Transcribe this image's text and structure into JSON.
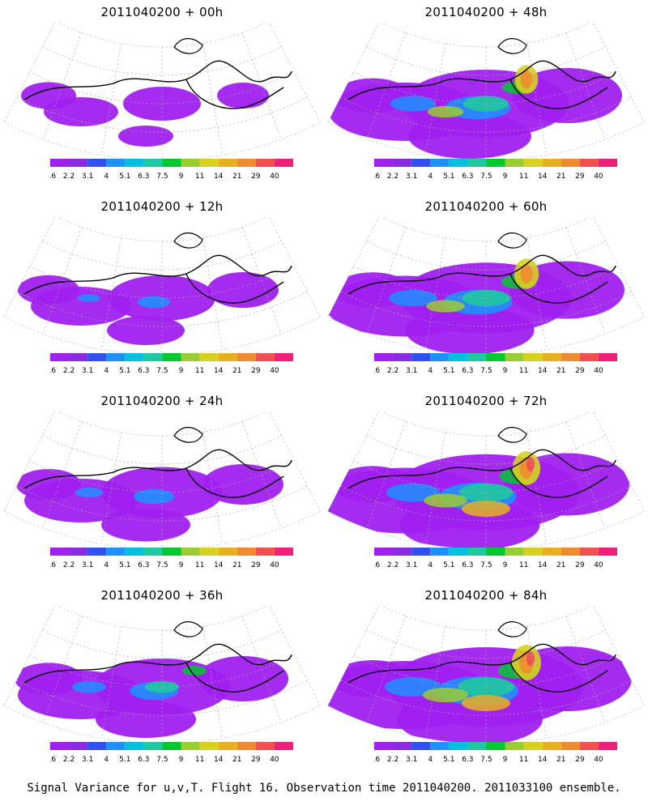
{
  "panels": [
    {
      "title": "2011040200 + 00h",
      "lead": "00h"
    },
    {
      "title": "2011040200 + 48h",
      "lead": "48h"
    },
    {
      "title": "2011040200 + 12h",
      "lead": "12h"
    },
    {
      "title": "2011040200 + 60h",
      "lead": "60h"
    },
    {
      "title": "2011040200 + 24h",
      "lead": "24h"
    },
    {
      "title": "2011040200 + 72h",
      "lead": "72h"
    },
    {
      "title": "2011040200 + 36h",
      "lead": "36h"
    },
    {
      "title": "2011040200 + 84h",
      "lead": "84h"
    }
  ],
  "colorbar": {
    "labels": [
      "1.6",
      "2.2",
      "3.1",
      "4",
      "5.1",
      "6.3",
      "7.5",
      "9",
      "11",
      "14",
      "21",
      "29",
      "40"
    ],
    "colors": [
      "#a020f0",
      "#8a2be2",
      "#3050f0",
      "#1e90ff",
      "#00c0e0",
      "#20c8a0",
      "#00c830",
      "#9acd32",
      "#d8d020",
      "#e8b020",
      "#f08c30",
      "#f05050",
      "#f0207a"
    ]
  },
  "footer": "Signal Variance for u,v,T. Flight 16. Observation time 2011040200. 2011033100 ensemble."
}
